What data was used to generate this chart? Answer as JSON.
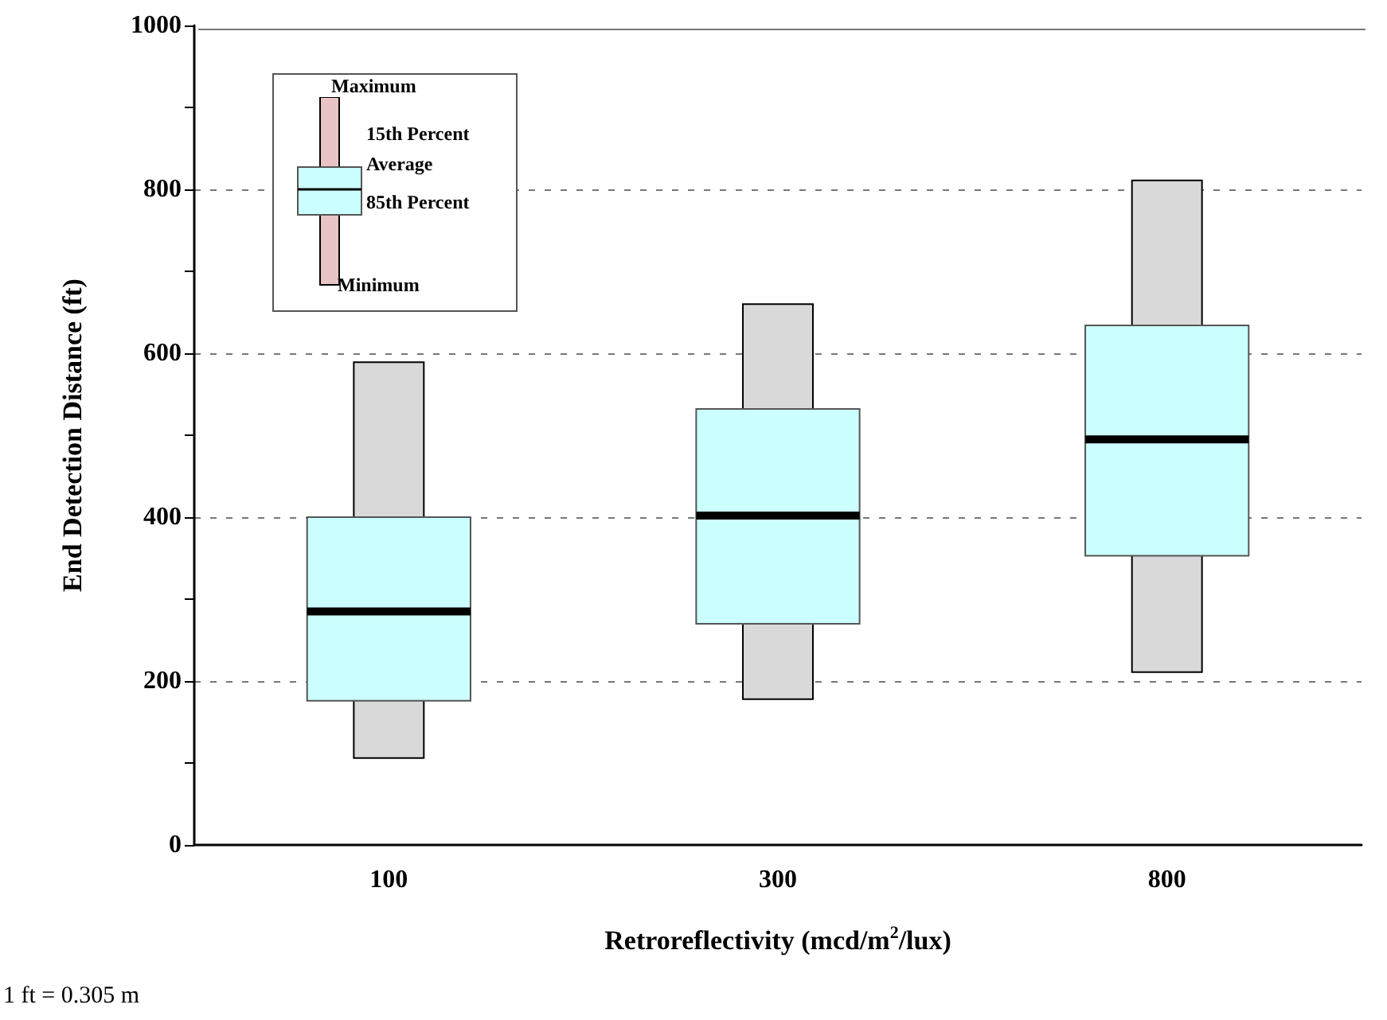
{
  "chart_data": {
    "type": "box",
    "xlabel": "Retroreflectivity (mcd/m$^{2}$/lux)",
    "ylabel": "End Detection Distance (ft)",
    "categories": [
      "100",
      "300",
      "800"
    ],
    "series": [
      {
        "type": "box",
        "color": "#ccffff",
        "boxes": [
          {
            "low": 106,
            "q1": 176,
            "median": 285,
            "q3": 400,
            "high": 589
          },
          {
            "low": 178,
            "q1": 270,
            "median": 402,
            "q3": 532,
            "high": 660
          },
          {
            "low": 211,
            "q1": 353,
            "median": 495,
            "q3": 634,
            "high": 811
          }
        ]
      }
    ],
    "ylim": [
      0,
      1000
    ],
    "yticks": [
      0,
      {
        "value": 100,
        "label": null
      },
      200,
      {
        "value": 300,
        "label": null
      },
      400,
      {
        "value": 500,
        "label": null
      },
      600,
      {
        "value": 700,
        "label": null
      },
      800,
      {
        "value": 900,
        "label": null
      },
      1000
    ],
    "grid": "y",
    "annotations": [
      "Maximum",
      "15th Percent",
      "Average",
      "85th Percent",
      "Minimum",
      "1 ft = 0.305 m"
    ]
  }
}
